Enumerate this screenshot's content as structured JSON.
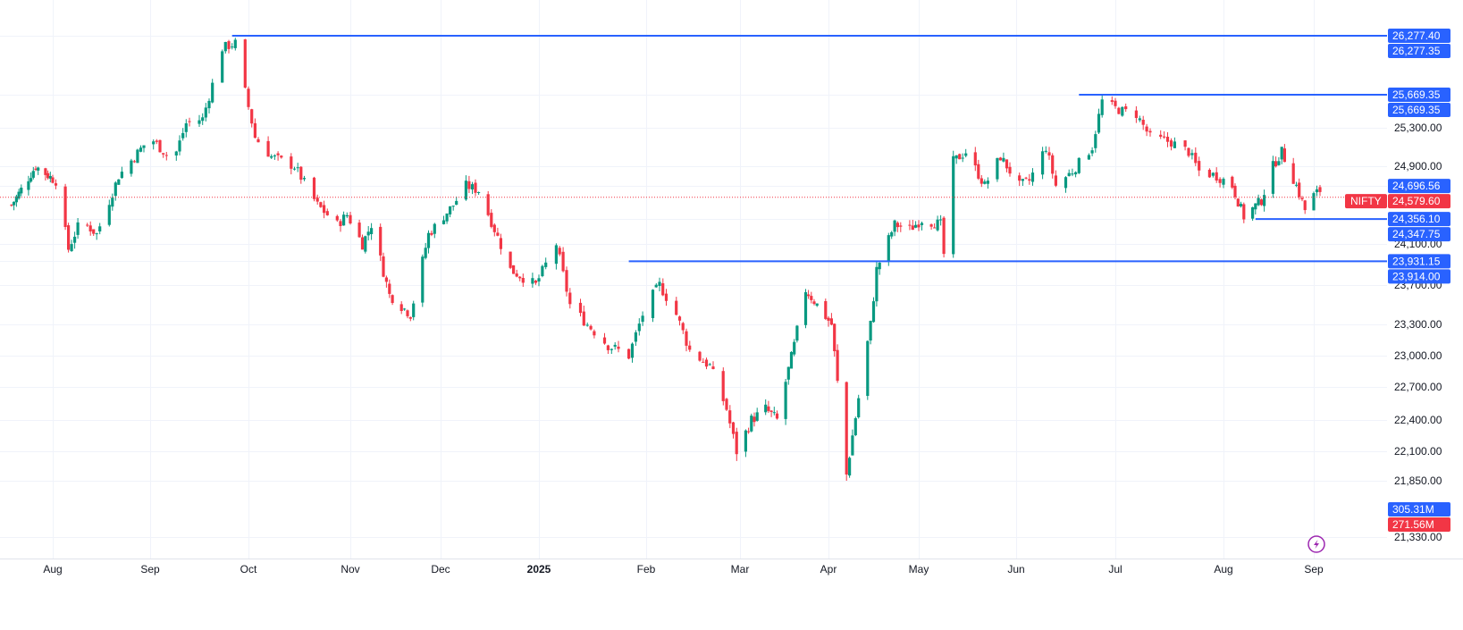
{
  "chart_data": {
    "type": "candlestick",
    "symbol": "NIFTY",
    "last_price": "24,579.60",
    "y_ticks": [
      26277.4,
      25669.35,
      25300,
      24900,
      24696.56,
      24356.1,
      24100,
      23931.15,
      23700,
      23300,
      23000,
      22700,
      22400,
      22100,
      21850,
      21330
    ],
    "y_tick_labels": [
      "",
      "",
      "25,300.00",
      "24,900.00",
      "",
      "",
      "24,100.00",
      "",
      "23,700.00",
      "23,300.00",
      "23,000.00",
      "22,700.00",
      "22,400.00",
      "22,100.00",
      "21,850.00",
      "21,330.00"
    ],
    "x_labels": [
      {
        "label": "Aug",
        "bold": false
      },
      {
        "label": "Sep",
        "bold": false
      },
      {
        "label": "Oct",
        "bold": false
      },
      {
        "label": "Nov",
        "bold": false
      },
      {
        "label": "Dec",
        "bold": false
      },
      {
        "label": "2025",
        "bold": true
      },
      {
        "label": "Feb",
        "bold": false
      },
      {
        "label": "Mar",
        "bold": false
      },
      {
        "label": "Apr",
        "bold": false
      },
      {
        "label": "May",
        "bold": false
      },
      {
        "label": "Jun",
        "bold": false
      },
      {
        "label": "Jul",
        "bold": false
      },
      {
        "label": "Aug",
        "bold": false
      },
      {
        "label": "Sep",
        "bold": false
      }
    ],
    "horizontal_lines": [
      {
        "price": 26277.35,
        "start_month": "2024-09"
      },
      {
        "price": 25669.35,
        "start_month": "2025-06"
      },
      {
        "price": 24356.1,
        "start_month": "2025-08"
      },
      {
        "price": 23931.15,
        "start_month": "2025-01"
      }
    ],
    "price_tags": [
      {
        "text": "26,277.40",
        "price": 26277.4,
        "color": "#2962ff"
      },
      {
        "text": "26,277.35",
        "price": 26277.35,
        "color": "#2962ff"
      },
      {
        "text": "25,669.35",
        "price": 25669.35,
        "color": "#2962ff"
      },
      {
        "text": "25,669.35",
        "price": 25669.35,
        "color": "#2962ff"
      },
      {
        "text": "24,696.56",
        "price": 24696.56,
        "color": "#2962ff"
      },
      {
        "text": "24,579.60",
        "price": 24579.6,
        "color": "#f23645"
      },
      {
        "text": "24,356.10",
        "price": 24356.1,
        "color": "#2962ff"
      },
      {
        "text": "24,347.75",
        "price": 24347.75,
        "color": "#2962ff"
      },
      {
        "text": "23,931.15",
        "price": 23931.15,
        "color": "#2962ff"
      },
      {
        "text": "23,914.00",
        "price": 23914.0,
        "color": "#2962ff"
      }
    ],
    "volume_tags": [
      {
        "text": "305.31M",
        "color": "#2962ff"
      },
      {
        "text": "271.56M",
        "color": "#f23645"
      }
    ],
    "keypoints": [
      [
        "2024-07-15",
        24500
      ],
      [
        "2024-07-25",
        24900
      ],
      [
        "2024-08-02",
        24750
      ],
      [
        "2024-08-06",
        24050
      ],
      [
        "2024-08-10",
        24350
      ],
      [
        "2024-08-15",
        24200
      ],
      [
        "2024-08-22",
        24800
      ],
      [
        "2024-09-01",
        25200
      ],
      [
        "2024-09-08",
        24950
      ],
      [
        "2024-09-12",
        25350
      ],
      [
        "2024-09-17",
        25400
      ],
      [
        "2024-09-23",
        26150
      ],
      [
        "2024-09-27",
        26200
      ],
      [
        "2024-10-03",
        25200
      ],
      [
        "2024-10-08",
        25000
      ],
      [
        "2024-10-15",
        24900
      ],
      [
        "2024-10-22",
        24500
      ],
      [
        "2024-10-28",
        24300
      ],
      [
        "2024-10-31",
        24400
      ],
      [
        "2024-11-05",
        24100
      ],
      [
        "2024-11-08",
        24300
      ],
      [
        "2024-11-14",
        23600
      ],
      [
        "2024-11-21",
        23400
      ],
      [
        "2024-11-27",
        24200
      ],
      [
        "2024-12-05",
        24500
      ],
      [
        "2024-12-09",
        24700
      ],
      [
        "2024-12-13",
        24650
      ],
      [
        "2024-12-18",
        24250
      ],
      [
        "2024-12-23",
        23850
      ],
      [
        "2024-12-31",
        23700
      ],
      [
        "2025-01-06",
        24100
      ],
      [
        "2025-01-10",
        23500
      ],
      [
        "2025-01-15",
        23300
      ],
      [
        "2025-01-21",
        23100
      ],
      [
        "2025-01-27",
        23000
      ],
      [
        "2025-02-01",
        23500
      ],
      [
        "2025-02-05",
        23700
      ],
      [
        "2025-02-10",
        23400
      ],
      [
        "2025-02-14",
        23050
      ],
      [
        "2025-02-20",
        22900
      ],
      [
        "2025-02-25",
        22500
      ],
      [
        "2025-02-28",
        22100
      ],
      [
        "2025-03-05",
        22400
      ],
      [
        "2025-03-10",
        22500
      ],
      [
        "2025-03-14",
        22400
      ],
      [
        "2025-03-20",
        23100
      ],
      [
        "2025-03-24",
        23650
      ],
      [
        "2025-03-28",
        23500
      ],
      [
        "2025-04-02",
        23300
      ],
      [
        "2025-04-07",
        21900
      ],
      [
        "2025-04-11",
        22600
      ],
      [
        "2025-04-15",
        23300
      ],
      [
        "2025-04-17",
        23850
      ],
      [
        "2025-04-23",
        24300
      ],
      [
        "2025-04-28",
        24250
      ],
      [
        "2025-05-02",
        24350
      ],
      [
        "2025-05-08",
        24300
      ],
      [
        "2025-05-09",
        24000
      ],
      [
        "2025-05-12",
        24950
      ],
      [
        "2025-05-16",
        25050
      ],
      [
        "2025-05-22",
        24700
      ],
      [
        "2025-05-27",
        25000
      ],
      [
        "2025-06-02",
        24700
      ],
      [
        "2025-06-05",
        24750
      ],
      [
        "2025-06-10",
        25100
      ],
      [
        "2025-06-13",
        24700
      ],
      [
        "2025-06-18",
        24850
      ],
      [
        "2025-06-24",
        25100
      ],
      [
        "2025-06-27",
        25600
      ],
      [
        "2025-07-02",
        25500
      ],
      [
        "2025-07-07",
        25450
      ],
      [
        "2025-07-11",
        25200
      ],
      [
        "2025-07-17",
        25150
      ],
      [
        "2025-07-22",
        25050
      ],
      [
        "2025-07-25",
        24850
      ],
      [
        "2025-07-30",
        24800
      ],
      [
        "2025-08-04",
        24700
      ],
      [
        "2025-08-08",
        24380
      ],
      [
        "2025-08-14",
        24550
      ],
      [
        "2025-08-18",
        24900
      ],
      [
        "2025-08-21",
        25050
      ],
      [
        "2025-08-26",
        24700
      ],
      [
        "2025-08-29",
        24450
      ],
      [
        "2025-09-01",
        24600
      ],
      [
        "2025-09-03",
        24650
      ]
    ]
  }
}
